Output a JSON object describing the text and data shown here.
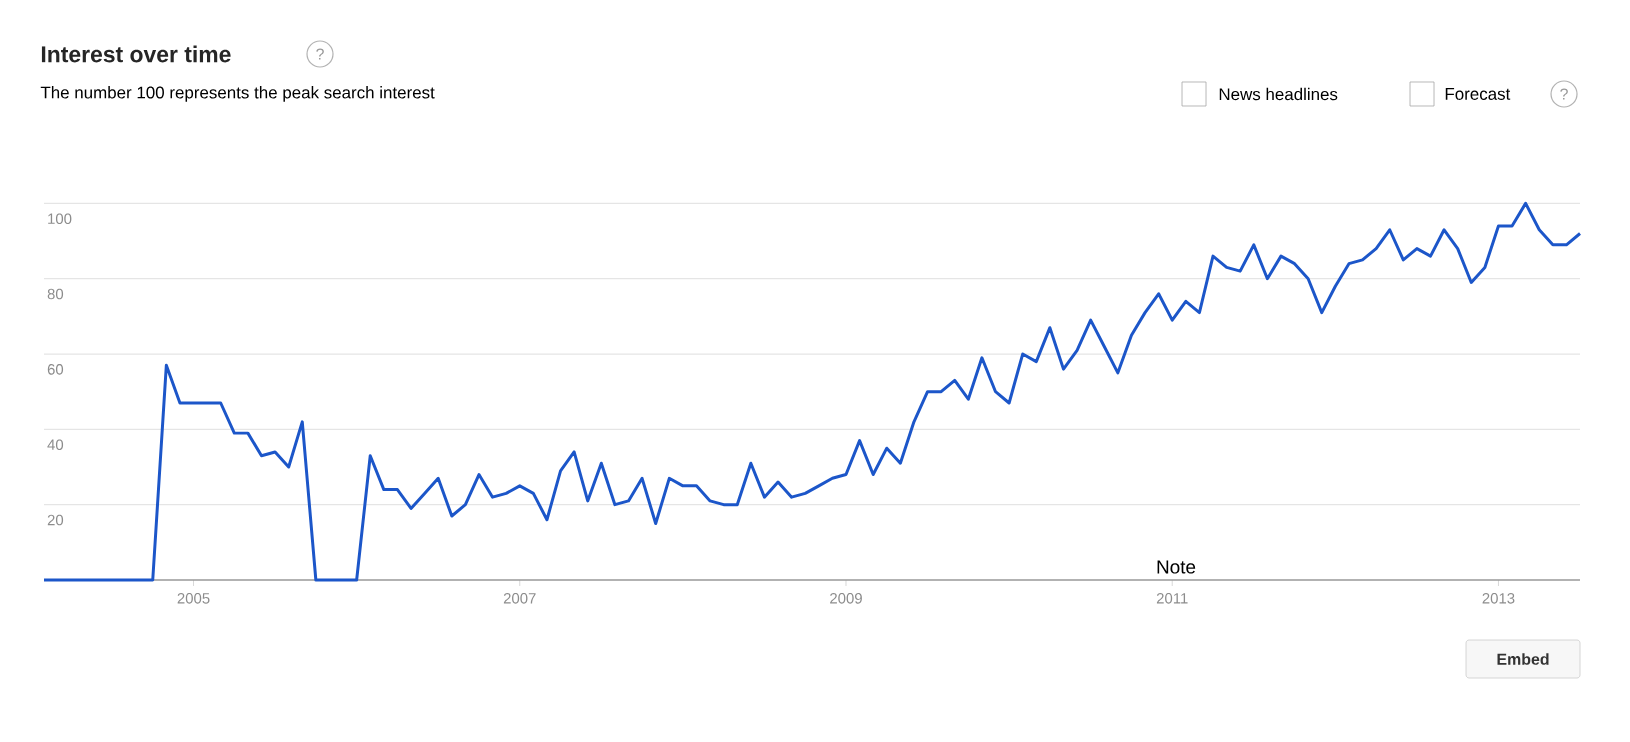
{
  "chart_data": {
    "type": "line",
    "title": "Interest over time",
    "subtitle": "The number 100 represents the peak search interest",
    "x": [
      "2004-02",
      "2004-03",
      "2004-04",
      "2004-05",
      "2004-06",
      "2004-07",
      "2004-08",
      "2004-09",
      "2004-10",
      "2004-11",
      "2004-12",
      "2005-01",
      "2005-02",
      "2005-03",
      "2005-04",
      "2005-05",
      "2005-06",
      "2005-07",
      "2005-08",
      "2005-09",
      "2005-10",
      "2005-11",
      "2005-12",
      "2006-01",
      "2006-02",
      "2006-03",
      "2006-04",
      "2006-05",
      "2006-06",
      "2006-07",
      "2006-08",
      "2006-09",
      "2006-10",
      "2006-11",
      "2006-12",
      "2007-01",
      "2007-02",
      "2007-03",
      "2007-04",
      "2007-05",
      "2007-06",
      "2007-07",
      "2007-08",
      "2007-09",
      "2007-10",
      "2007-11",
      "2007-12",
      "2008-01",
      "2008-02",
      "2008-03",
      "2008-04",
      "2008-05",
      "2008-06",
      "2008-07",
      "2008-08",
      "2008-09",
      "2008-10",
      "2008-11",
      "2008-12",
      "2009-01",
      "2009-02",
      "2009-03",
      "2009-04",
      "2009-05",
      "2009-06",
      "2009-07",
      "2009-08",
      "2009-09",
      "2009-10",
      "2009-11",
      "2009-12",
      "2010-01",
      "2010-02",
      "2010-03",
      "2010-04",
      "2010-05",
      "2010-06",
      "2010-07",
      "2010-08",
      "2010-09",
      "2010-10",
      "2010-11",
      "2010-12",
      "2011-01",
      "2011-02",
      "2011-03",
      "2011-04",
      "2011-05",
      "2011-06",
      "2011-07",
      "2011-08",
      "2011-09",
      "2011-10",
      "2011-11",
      "2011-12",
      "2012-01",
      "2012-02",
      "2012-03",
      "2012-04",
      "2012-05",
      "2012-06",
      "2012-07",
      "2012-08",
      "2012-09",
      "2012-10",
      "2012-11",
      "2012-12",
      "2013-01",
      "2013-02",
      "2013-03",
      "2013-04",
      "2013-05",
      "2013-06",
      "2013-07"
    ],
    "series": [
      {
        "color": "#1c56c9",
        "values": [
          0,
          0,
          0,
          0,
          0,
          0,
          0,
          0,
          0,
          57,
          47,
          47,
          47,
          47,
          39,
          39,
          33,
          34,
          30,
          42,
          0,
          0,
          0,
          0,
          33,
          24,
          24,
          19,
          23,
          27,
          17,
          20,
          28,
          22,
          23,
          25,
          23,
          16,
          29,
          34,
          21,
          31,
          20,
          21,
          27,
          15,
          27,
          25,
          25,
          21,
          20,
          20,
          31,
          22,
          26,
          22,
          23,
          25,
          27,
          28,
          37,
          28,
          35,
          31,
          42,
          50,
          50,
          53,
          48,
          59,
          50,
          47,
          60,
          58,
          67,
          56,
          61,
          69,
          62,
          55,
          65,
          71,
          76,
          69,
          74,
          71,
          86,
          83,
          82,
          89,
          80,
          86,
          84,
          80,
          71,
          78,
          84,
          85,
          88,
          93,
          85,
          88,
          86,
          93,
          88,
          79,
          83,
          94,
          94,
          100,
          93,
          89,
          89,
          92
        ]
      }
    ],
    "xlim": [
      "2004-02",
      "2013-07"
    ],
    "xticks": [
      "2005",
      "2007",
      "2009",
      "2011",
      "2013"
    ],
    "ylim": [
      0,
      100
    ],
    "yticks": [
      20,
      40,
      60,
      80,
      100
    ],
    "grid": "y",
    "annotations": [
      "Note",
      "?",
      "News headlines",
      "Forecast",
      "?",
      "Embed"
    ]
  }
}
